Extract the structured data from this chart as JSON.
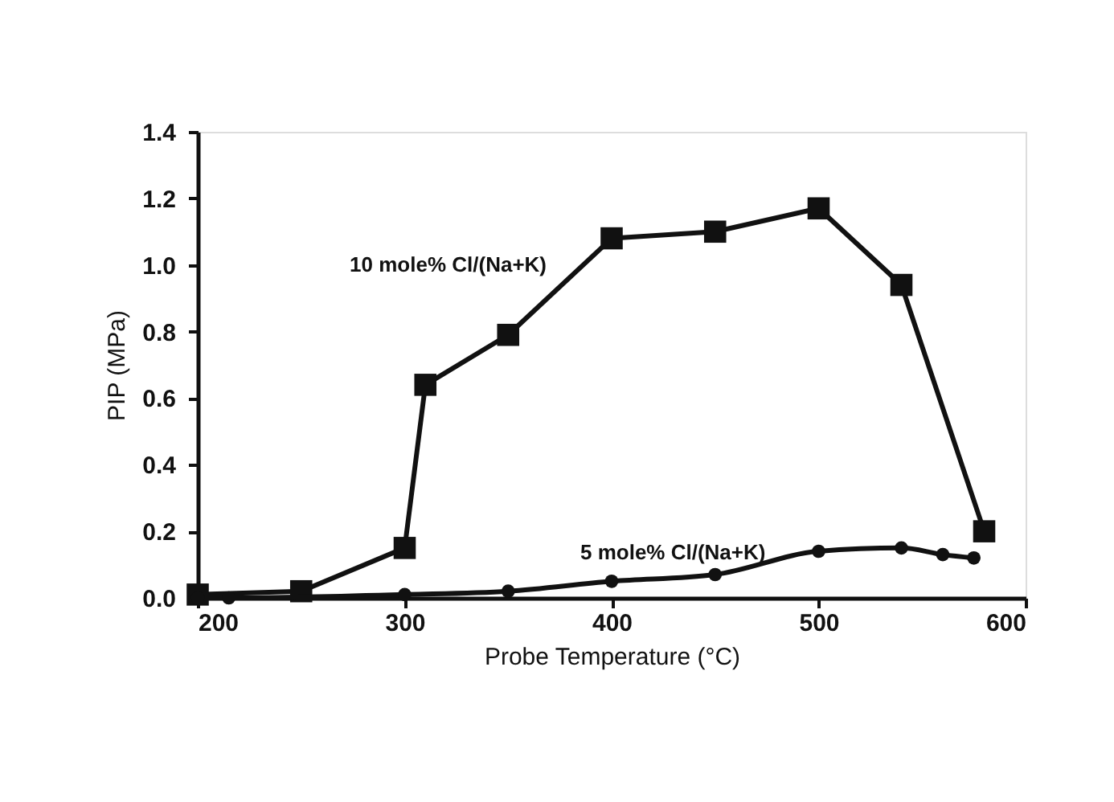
{
  "chart_data": {
    "type": "line",
    "xlabel": "Probe Temperature (°C)",
    "ylabel": "PIP (MPa)",
    "xlim": [
      200,
      600
    ],
    "xticks": [
      200,
      300,
      400,
      500,
      600
    ],
    "ylim": [
      0,
      1.4
    ],
    "yticks": [
      {
        "value": 0,
        "label": "0.0"
      },
      0.2,
      0.4,
      0.6,
      0.8,
      {
        "value": 1,
        "label": "1.0"
      },
      1.2,
      1.4
    ],
    "grid": false,
    "legend": false,
    "line_style": "solid",
    "series": [
      {
        "name": "10 mole% Cl/(Na+K)",
        "color": "#111111",
        "marker": "square",
        "x": [
          200,
          250,
          300,
          310,
          350,
          400,
          450,
          500,
          540,
          580
        ],
        "values": [
          0.01,
          0.02,
          0.15,
          0.64,
          0.79,
          1.08,
          1.1,
          1.17,
          0.94,
          0.2
        ]
      },
      {
        "name": "5 mole% Cl/(Na+K)",
        "color": "#111111",
        "marker": "circle",
        "x": [
          200,
          215,
          300,
          350,
          400,
          450,
          500,
          540,
          560,
          575
        ],
        "values": [
          0.0,
          0.0,
          0.01,
          0.02,
          0.05,
          0.07,
          0.14,
          0.15,
          0.13,
          0.12
        ]
      }
    ]
  }
}
